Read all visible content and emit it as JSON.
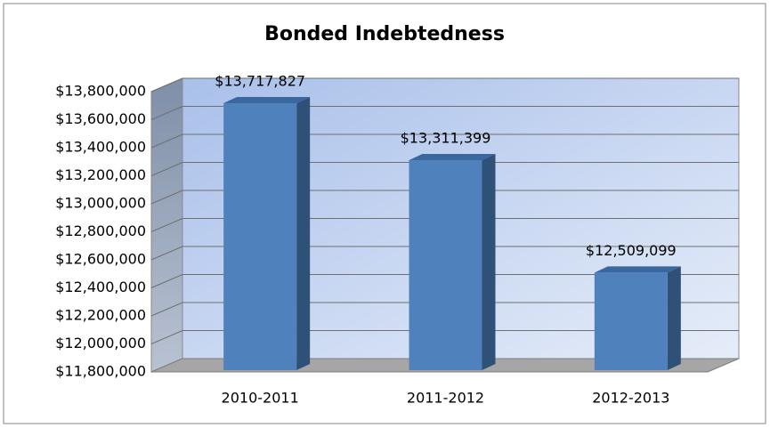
{
  "chart_data": {
    "type": "bar3d",
    "title": "Bonded Indebtedness",
    "categories": [
      "2010-2011",
      "2011-2012",
      "2012-2013"
    ],
    "values": [
      13717827,
      13311399,
      12509099
    ],
    "value_labels": [
      "$13,717,827",
      "$13,311,399",
      "$12,509,099"
    ],
    "color": "#4f81bd",
    "ylim": [
      11800000,
      13800000
    ],
    "yticks": [
      {
        "value": 11800000,
        "label": "$11,800,000"
      },
      {
        "value": 12000000,
        "label": "$12,000,000"
      },
      {
        "value": 12200000,
        "label": "$12,200,000"
      },
      {
        "value": 12400000,
        "label": "$12,400,000"
      },
      {
        "value": 12600000,
        "label": "$12,600,000"
      },
      {
        "value": 12800000,
        "label": "$12,800,000"
      },
      {
        "value": 13000000,
        "label": "$13,000,000"
      },
      {
        "value": 13200000,
        "label": "$13,200,000"
      },
      {
        "value": 13400000,
        "label": "$13,400,000"
      },
      {
        "value": 13600000,
        "label": "$13,600,000"
      },
      {
        "value": 13800000,
        "label": "$13,800,000"
      }
    ],
    "grid": true
  }
}
